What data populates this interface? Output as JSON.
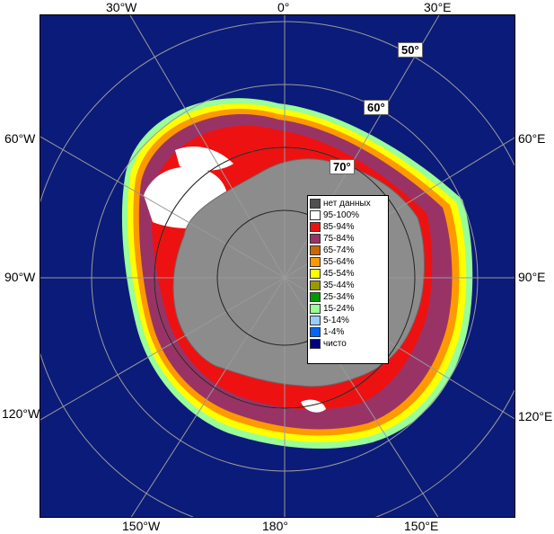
{
  "lon_labels": {
    "top_left": "30°W",
    "top_center": "0°",
    "top_right": "30°E",
    "left_upper": "60°W",
    "left_middle": "90°W",
    "left_lower": "120°W",
    "right_upper": "60°E",
    "right_middle": "90°E",
    "right_lower": "120°E",
    "bottom_left": "150°W",
    "bottom_center": "180°",
    "bottom_right": "150°E"
  },
  "lat_labels": {
    "lat50": "50°",
    "lat60": "60°",
    "lat70": "70°"
  },
  "legend": [
    {
      "label": "нет данных",
      "color": "#505050"
    },
    {
      "label": "95-100%",
      "color": "#ffffff"
    },
    {
      "label": "85-94%",
      "color": "#ee1111"
    },
    {
      "label": "75-84%",
      "color": "#993366"
    },
    {
      "label": "65-74%",
      "color": "#cc6600"
    },
    {
      "label": "55-64%",
      "color": "#ff9900"
    },
    {
      "label": "45-54%",
      "color": "#ffff00"
    },
    {
      "label": "35-44%",
      "color": "#999900"
    },
    {
      "label": "25-34%",
      "color": "#009900"
    },
    {
      "label": "15-24%",
      "color": "#99ff99"
    },
    {
      "label": "5-14%",
      "color": "#99ccff"
    },
    {
      "label": "1-4%",
      "color": "#0066ff"
    },
    {
      "label": "чисто",
      "color": "#000080"
    }
  ],
  "colors": {
    "ocean": "#0b1b7a",
    "land": "#8c8c8c",
    "grid": "#9a9a9a"
  }
}
